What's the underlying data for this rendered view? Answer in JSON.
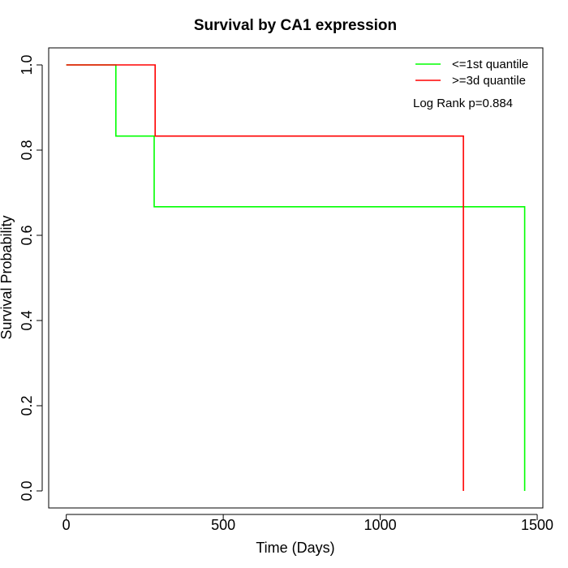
{
  "chart_data": {
    "type": "line",
    "title": "Survival by CA1 expression",
    "xlabel": "Time (Days)",
    "ylabel": "Survival Probability",
    "xlim": [
      -56,
      1518
    ],
    "ylim": [
      -0.04,
      1.04
    ],
    "xticks": [
      0,
      500,
      1000,
      1500
    ],
    "yticks": [
      0.0,
      0.2,
      0.4,
      0.6,
      0.8,
      1.0
    ],
    "xtick_labels": [
      "0",
      "500",
      "1000",
      "1500"
    ],
    "ytick_labels": [
      "0.0",
      "0.2",
      "0.4",
      "0.6",
      "0.8",
      "1.0"
    ],
    "grid": false,
    "legend_position": "top-right",
    "annotation": "Log Rank p=0.884",
    "series": [
      {
        "name": "<=1st quantile",
        "color": "#00ff00",
        "step": true,
        "x": [
          0,
          158,
          158,
          280,
          280,
          1460,
          1460
        ],
        "y": [
          1.0,
          1.0,
          0.833,
          0.833,
          0.667,
          0.667,
          0.0
        ]
      },
      {
        "name": ">=3d quantile",
        "color": "#ff0000",
        "step": true,
        "x": [
          0,
          283,
          283,
          1265,
          1265
        ],
        "y": [
          1.0,
          1.0,
          0.833,
          0.833,
          0.0
        ]
      }
    ]
  }
}
